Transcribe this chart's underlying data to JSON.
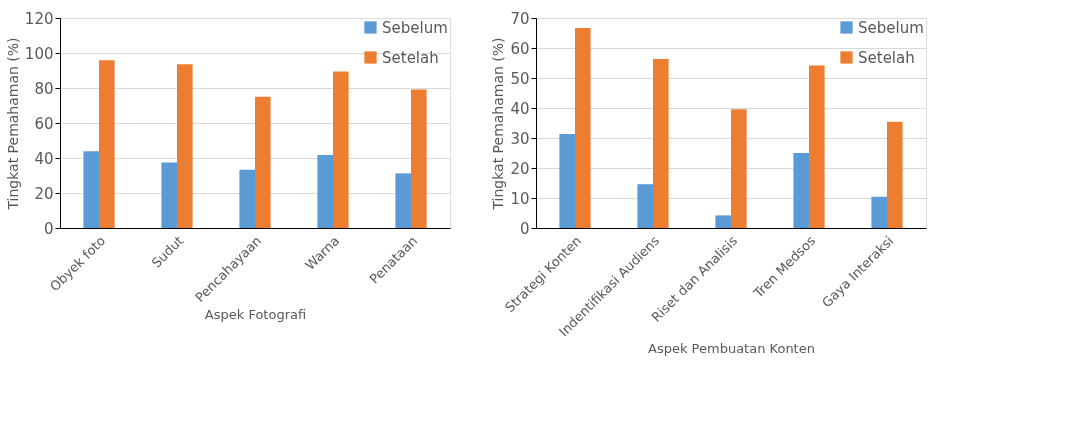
{
  "chart_data": [
    {
      "type": "bar",
      "xlabel": "Aspek Fotografi",
      "ylabel": "Tingkat Pemahaman (%)",
      "categories": [
        "Obyek foto",
        "Sudut",
        "Pencahayaan",
        "Warna",
        "Penataan"
      ],
      "series": [
        {
          "name": "Sebelum",
          "color": "#5b9bd5",
          "values": [
            43.8,
            37.5,
            33.3,
            41.7,
            31.2
          ]
        },
        {
          "name": "Setelah",
          "color": "#ed7d31",
          "values": [
            95.8,
            93.6,
            75.0,
            89.5,
            79.2
          ]
        }
      ],
      "ylim": [
        0,
        120
      ],
      "yticks": [
        0,
        20,
        40,
        60,
        80,
        100,
        120
      ],
      "grid": "y",
      "legend": "top right"
    },
    {
      "type": "bar",
      "xlabel": "Aspek Pembuatan Konten",
      "ylabel": "Tingkat Pemahaman (%)",
      "categories": [
        "Strategi Konten",
        "Indentifikasi Audiens",
        "Riset dan Analisis",
        "Tren Medsos",
        "Gaya Interaksi"
      ],
      "series": [
        {
          "name": "Sebelum",
          "color": "#5b9bd5",
          "values": [
            31.3,
            14.6,
            4.2,
            25.0,
            10.4
          ]
        },
        {
          "name": "Setelah",
          "color": "#ed7d31",
          "values": [
            66.7,
            56.3,
            39.6,
            54.2,
            35.4
          ]
        }
      ],
      "ylim": [
        0,
        70
      ],
      "yticks": [
        0,
        10,
        20,
        30,
        40,
        50,
        60,
        70
      ],
      "grid": "y",
      "legend": "top right"
    }
  ]
}
